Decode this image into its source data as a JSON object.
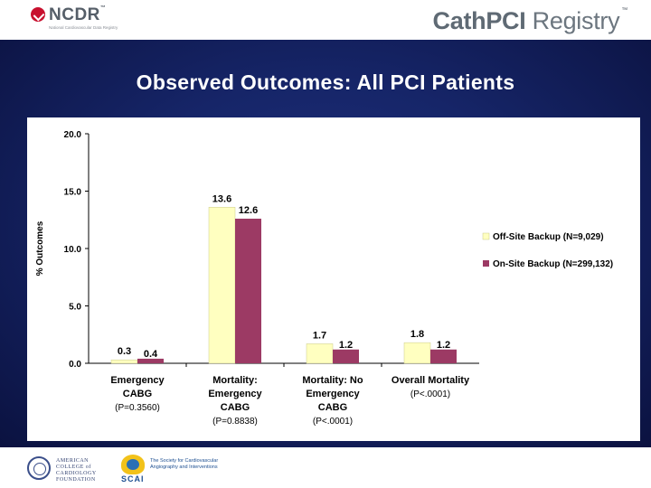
{
  "header": {
    "ncdr_name": "NCDR",
    "ncdr_tm": "™",
    "ncdr_sub": "National Cardiovascular Data Registry",
    "registry_cath": "CathPCI",
    "registry_reg": " Registry",
    "registry_tm": "™"
  },
  "slide": {
    "title": "Observed Outcomes: All PCI Patients"
  },
  "footer": {
    "acc_line1": "AMERICAN",
    "acc_line2": "COLLEGE of",
    "acc_line3": "CARDIOLOGY",
    "acc_line4": "FOUNDATION",
    "scai_name": "SCAI",
    "scai_tag1": "The Society for Cardiovascular",
    "scai_tag2": "Angiography and Interventions"
  },
  "colors": {
    "off_site": "#ffffc0",
    "on_site": "#9c3a64",
    "axis": "#000000"
  },
  "chart_data": {
    "type": "bar",
    "title": "",
    "xlabel": "",
    "ylabel": "% Outcomes",
    "ylim": [
      0,
      20
    ],
    "yticks": [
      "0.0",
      "5.0",
      "10.0",
      "15.0",
      "20.0"
    ],
    "grid": false,
    "legend_position": "right",
    "categories": [
      [
        "Emergency",
        "CABG",
        "(P=0.3560)"
      ],
      [
        "Mortality:",
        "Emergency",
        "CABG",
        "(P=0.8838)"
      ],
      [
        "Mortality: No",
        "Emergency",
        "CABG",
        "(P<.0001)"
      ],
      [
        "Overall Mortality",
        "(P<.0001)"
      ]
    ],
    "series": [
      {
        "name": "Off-Site Backup (N=9,029)",
        "values": [
          0.3,
          13.6,
          1.7,
          1.8
        ],
        "labels": [
          "0.3",
          "13.6",
          "1.7",
          "1.8"
        ]
      },
      {
        "name": "On-Site Backup (N=299,132)",
        "values": [
          0.4,
          12.6,
          1.2,
          1.2
        ],
        "labels": [
          "0.4",
          "12.6",
          "1.2",
          "1.2"
        ]
      }
    ]
  }
}
